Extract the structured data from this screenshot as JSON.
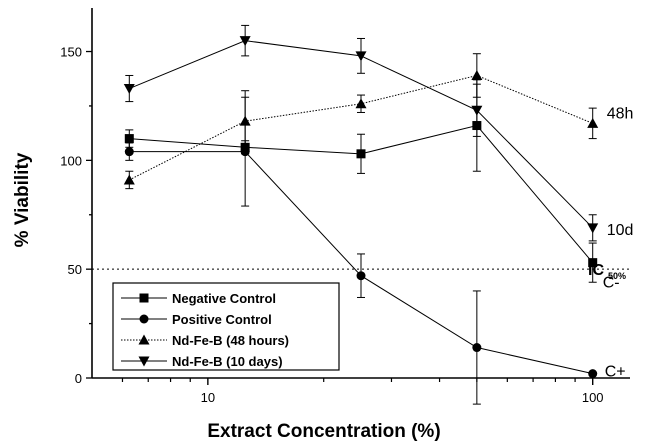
{
  "chart_data": {
    "type": "line",
    "xlabel": "Extract Concentration (%)",
    "ylabel": "% Viability",
    "xscale": "log",
    "xlim": [
      5,
      125
    ],
    "ylim": [
      0,
      170
    ],
    "x_ticks": [
      10,
      100
    ],
    "y_ticks": [
      0,
      50,
      100,
      150
    ],
    "grid": false,
    "legend_position": "bottom-left",
    "reference_line": {
      "y": 50,
      "style": "dotted",
      "label_main": "IC",
      "label_sub": "50%"
    },
    "series": [
      {
        "name": "Negative Control",
        "marker": "square",
        "line_style": "solid",
        "x": [
          6.25,
          12.5,
          25,
          50,
          100
        ],
        "y": [
          110,
          106,
          103,
          116,
          53
        ],
        "err": [
          4,
          3,
          9,
          21,
          9
        ],
        "end_label": "C-"
      },
      {
        "name": "Positive Control",
        "marker": "circle",
        "line_style": "solid",
        "x": [
          6.25,
          12.5,
          25,
          50,
          100
        ],
        "y": [
          104,
          104,
          47,
          14,
          2
        ],
        "err": [
          4,
          25,
          10,
          26,
          0
        ],
        "end_label": "C+"
      },
      {
        "name": "Nd-Fe-B (48 hours)",
        "marker": "triangle-up",
        "line_style": "dotted",
        "x": [
          6.25,
          12.5,
          25,
          50,
          100
        ],
        "y": [
          91,
          118,
          126,
          139,
          117
        ],
        "err": [
          4,
          14,
          4,
          10,
          7
        ],
        "end_label": "48h"
      },
      {
        "name": "Nd-Fe-B (10 days)",
        "marker": "triangle-down",
        "line_style": "solid",
        "x": [
          6.25,
          12.5,
          25,
          50,
          100
        ],
        "y": [
          133,
          155,
          148,
          123,
          69
        ],
        "err": [
          6,
          7,
          8,
          12,
          6
        ],
        "end_label": "10d"
      }
    ]
  }
}
